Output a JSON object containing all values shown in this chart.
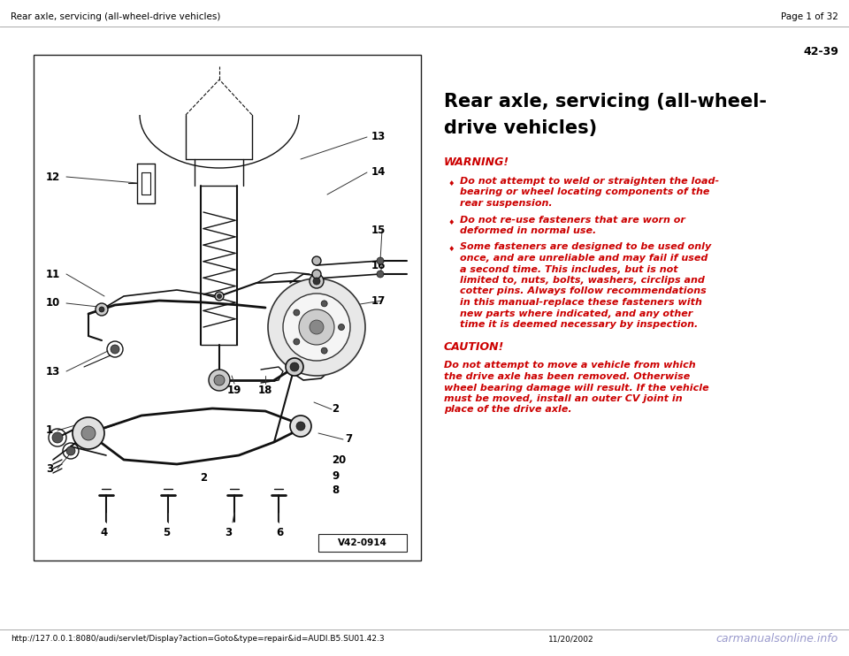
{
  "header_left": "Rear axle, servicing (all-wheel-drive vehicles)",
  "header_right": "Page 1 of 32",
  "page_number": "42-39",
  "title_line1": "Rear axle, servicing (all-wheel-",
  "title_line2": "drive vehicles)",
  "warning_label": "WARNING!",
  "warning_bullet1_line1": "Do not attempt to weld or straighten the load-",
  "warning_bullet1_line2": "bearing or wheel locating components of the",
  "warning_bullet1_line3": "rear suspension.",
  "warning_bullet2_line1": "Do not re-use fasteners that are worn or",
  "warning_bullet2_line2": "deformed in normal use.",
  "warning_bullet3_line1": "Some fasteners are designed to be used only",
  "warning_bullet3_line2": "once, and are unreliable and may fail if used",
  "warning_bullet3_line3": "a second time. This includes, but is not",
  "warning_bullet3_line4": "limited to, nuts, bolts, washers, circlips and",
  "warning_bullet3_line5": "cotter pins. Always follow recommendations",
  "warning_bullet3_line6": "in this manual-replace these fasteners with",
  "warning_bullet3_line7": "new parts where indicated, and any other",
  "warning_bullet3_line8": "time it is deemed necessary by inspection.",
  "caution_label": "CAUTION!",
  "caution_line1": "Do not attempt to move a vehicle from which",
  "caution_line2": "the drive axle has been removed. Otherwise",
  "caution_line3": "wheel bearing damage will result. If the vehicle",
  "caution_line4": "must be moved, install an outer CV joint in",
  "caution_line5": "place of the drive axle.",
  "footer_url": "http://127.0.0.1:8080/audi/servlet/Display?action=Goto&type=repair&id=AUDI.B5.SU01.42.3",
  "footer_date": "11/20/2002",
  "footer_brand": "carmanualsonline.info",
  "image_label": "V42-0914",
  "bg_color": "#ffffff",
  "text_black": "#000000",
  "text_red": "#cc0000",
  "header_fs": 7.5,
  "title_fs": 15,
  "warn_label_fs": 9,
  "body_fs": 8,
  "footer_fs": 6.5,
  "brand_fs": 9,
  "page_num_fs": 9
}
